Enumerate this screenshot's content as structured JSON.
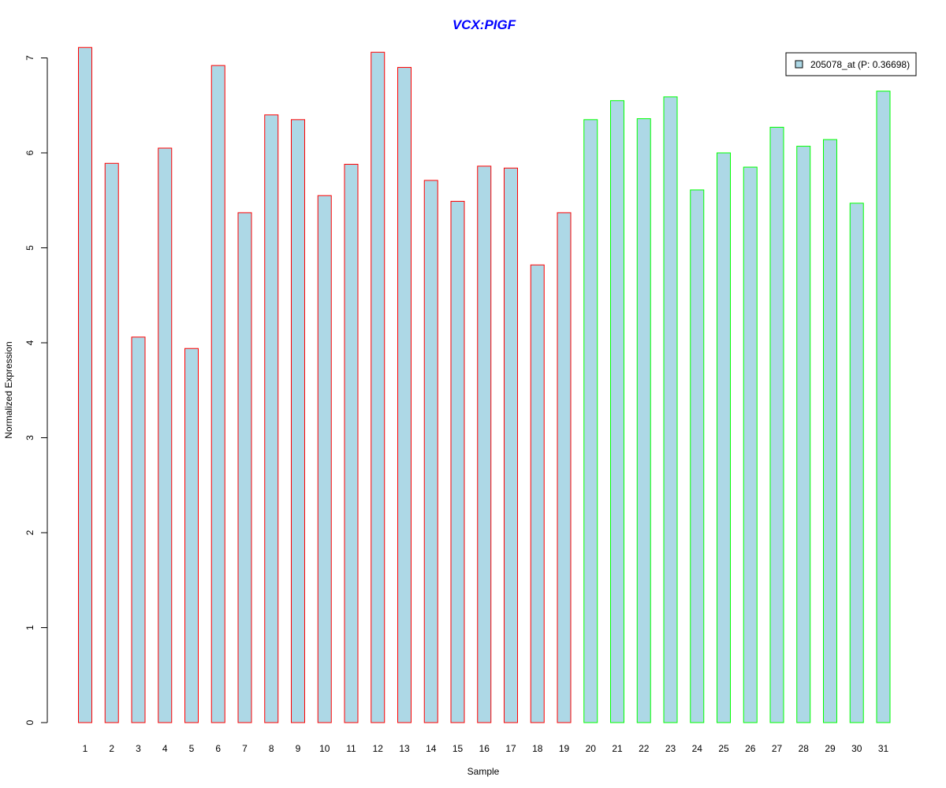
{
  "chart_data": {
    "type": "bar",
    "title": "VCX:PIGF",
    "xlabel": "Sample",
    "ylabel": "Normalized Expression",
    "ylim": [
      0,
      7.2
    ],
    "yticks": [
      0,
      1,
      2,
      3,
      4,
      5,
      6,
      7
    ],
    "categories": [
      "1",
      "2",
      "3",
      "4",
      "5",
      "6",
      "7",
      "8",
      "9",
      "10",
      "11",
      "12",
      "13",
      "14",
      "15",
      "16",
      "17",
      "18",
      "19",
      "20",
      "21",
      "22",
      "23",
      "24",
      "25",
      "26",
      "27",
      "28",
      "29",
      "30",
      "31"
    ],
    "series": [
      {
        "name": "205078_at (P: 0.36698)",
        "values": [
          7.11,
          5.89,
          4.06,
          6.05,
          3.94,
          6.92,
          5.37,
          6.4,
          6.35,
          5.55,
          5.88,
          7.06,
          6.9,
          5.71,
          5.49,
          5.86,
          5.84,
          4.82,
          5.37,
          6.35,
          6.55,
          6.36,
          6.59,
          5.61,
          6.0,
          5.85,
          6.27,
          6.07,
          6.14,
          5.47,
          6.65
        ],
        "group": [
          "a",
          "a",
          "a",
          "a",
          "a",
          "a",
          "a",
          "a",
          "a",
          "a",
          "a",
          "a",
          "a",
          "a",
          "a",
          "a",
          "a",
          "a",
          "a",
          "b",
          "b",
          "b",
          "b",
          "b",
          "b",
          "b",
          "b",
          "b",
          "b",
          "b",
          "b"
        ]
      }
    ],
    "legend": {
      "placement": "top-right",
      "label": "205078_at (P: 0.36698)"
    },
    "grid": false,
    "colors": {
      "fill": "#add8e6",
      "border_group_a": "#ff0000",
      "border_group_b": "#00ff00",
      "title": "#0000ff",
      "axis": "#000000"
    }
  }
}
